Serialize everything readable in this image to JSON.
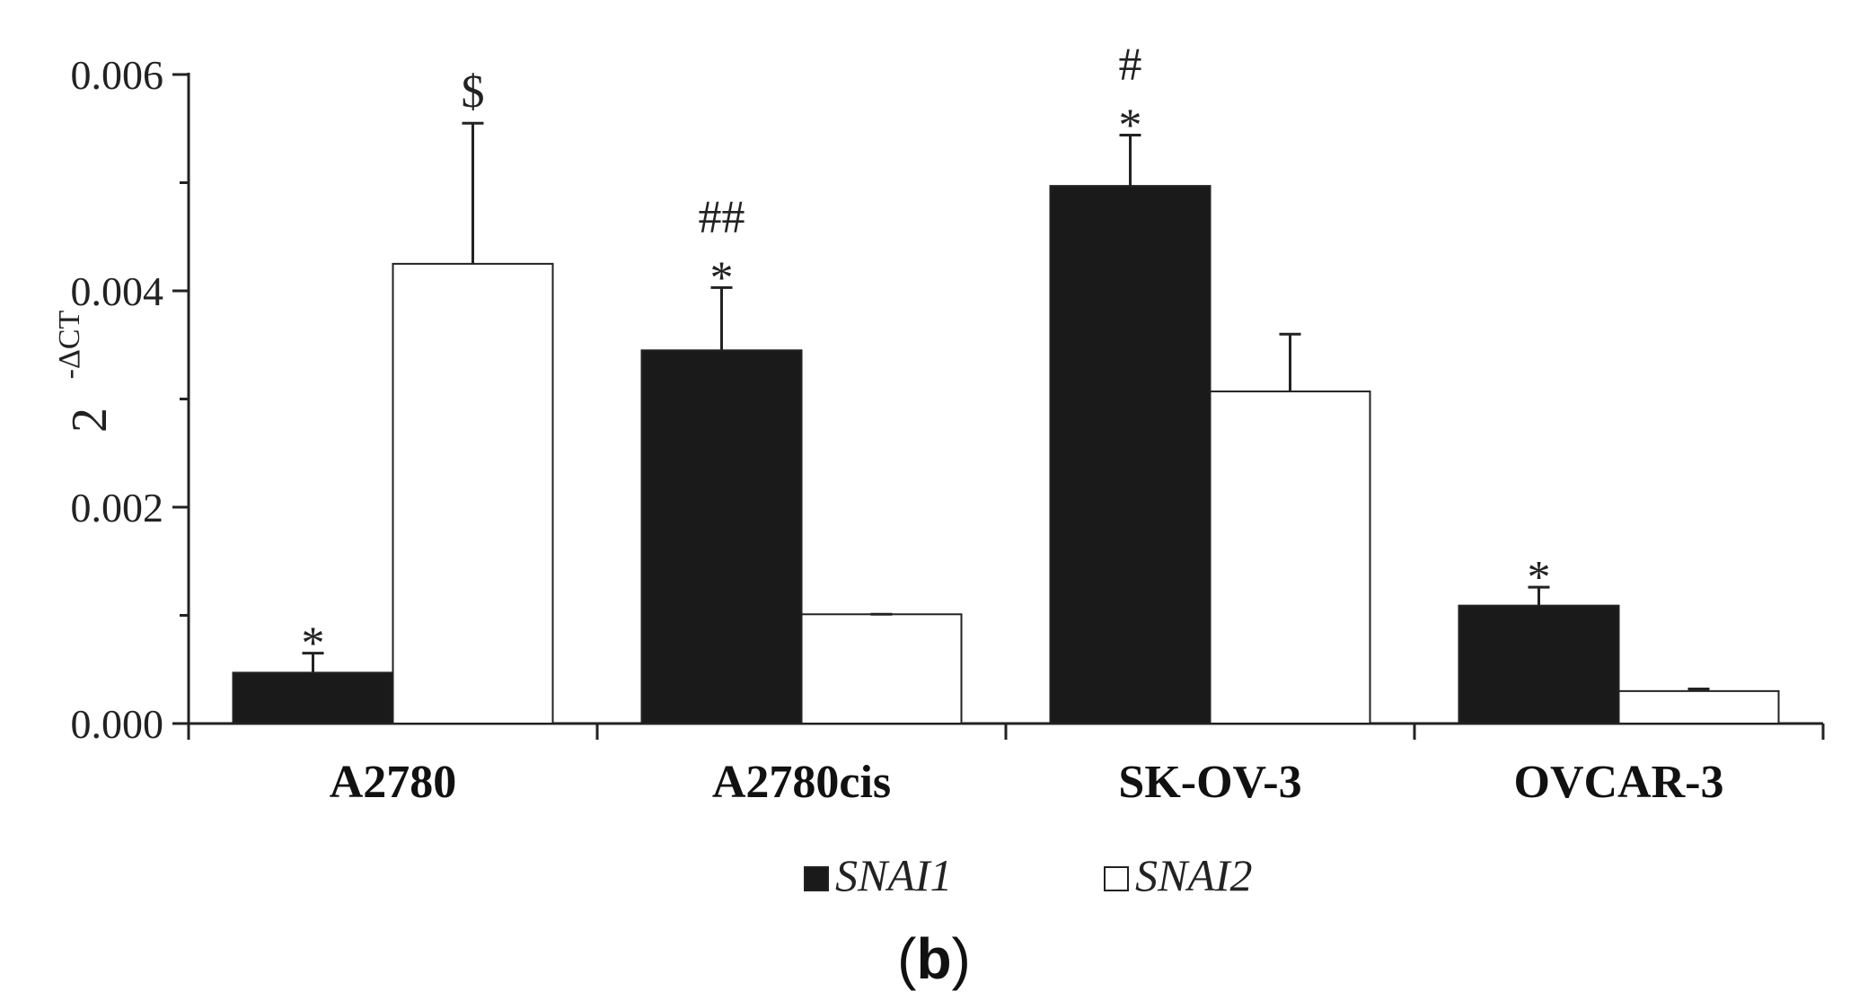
{
  "chart_data": {
    "type": "bar",
    "categories": [
      "A2780",
      "A2780cis",
      "SK-OV-3",
      "OVCAR-3"
    ],
    "series": [
      {
        "name": "SNAI1",
        "color": "#1a1a1a",
        "values": [
          0.00047,
          0.00345,
          0.00497,
          0.00109
        ],
        "errors": [
          0.00018,
          0.00058,
          0.00047,
          0.00017
        ],
        "annotations": [
          "*",
          "##\n*",
          "#\n*",
          "*"
        ]
      },
      {
        "name": "SNAI2",
        "color": "#ffffff",
        "values": [
          0.00425,
          0.00101,
          0.00307,
          0.0003
        ],
        "errors": [
          0.0013,
          0.0,
          0.00053,
          2e-05
        ],
        "annotations": [
          "$",
          "",
          "",
          ""
        ]
      }
    ],
    "ylabel_base": "2",
    "ylabel_exponent": "-ΔCT",
    "ylim": [
      0,
      0.006
    ],
    "y_ticks": [
      "0.000",
      "0.002",
      "0.004",
      "0.006"
    ],
    "y_tick_values": [
      0,
      0.002,
      0.004,
      0.006
    ],
    "legend_position": "bottom-center",
    "grid": false
  },
  "panel_label": {
    "open": "(",
    "letter": "b",
    "close": ")"
  }
}
